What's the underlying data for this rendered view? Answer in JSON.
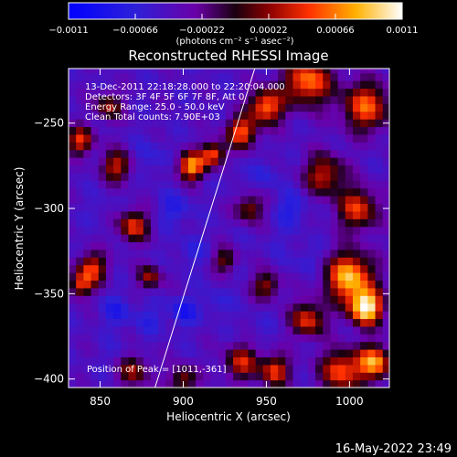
{
  "chart_data": {
    "type": "heatmap",
    "title": "Reconstructed RHESSI Image",
    "xlabel": "Heliocentric X (arcsec)",
    "ylabel": "Heliocentric Y (arcsec)",
    "xlim": [
      831,
      1024
    ],
    "ylim": [
      -405,
      -218
    ],
    "x_ticks": [
      850,
      900,
      950,
      1000
    ],
    "x_tick_labels": [
      "850",
      "900",
      "950",
      "1000"
    ],
    "y_ticks": [
      -400,
      -350,
      -300,
      -250
    ],
    "y_tick_labels": [
      "−400",
      "−350",
      "−300",
      "−250"
    ],
    "colorbar": {
      "min": -0.0011,
      "max": 0.0011,
      "ticks": [
        -0.0011,
        -0.00066,
        -0.00022,
        0.00022,
        0.00066,
        0.0011
      ],
      "tick_labels": [
        "−0.0011",
        "−0.00066",
        "−0.00022",
        "0.00022",
        "0.00066",
        "0.0011"
      ],
      "unit_label": "(photons cm⁻² s⁻¹ asec⁻²)"
    },
    "annotations": [
      "13-Dec-2011 22:18:28.000 to 22:20:04.000",
      "Detectors: 3F 4F 5F 6F 7F 8F, Att 0",
      "Energy Range: 25.0 - 50.0 keV",
      "Clean     Total counts: 7.90E+03"
    ],
    "peak_label": "Position of Peak = [1011,-361]",
    "limb_line": [
      [
        883,
        -405
      ],
      [
        943,
        -218
      ]
    ],
    "blobs": [
      {
        "x": 1010,
        "y": -358,
        "value": 0.0011,
        "size": 10
      },
      {
        "x": 1000,
        "y": -340,
        "value": 0.0009,
        "size": 14
      },
      {
        "x": 1015,
        "y": -390,
        "value": 0.0008,
        "size": 10
      },
      {
        "x": 995,
        "y": -395,
        "value": 0.0006,
        "size": 12
      },
      {
        "x": 975,
        "y": -365,
        "value": 0.0005,
        "size": 10
      },
      {
        "x": 1005,
        "y": -300,
        "value": 0.0005,
        "size": 12
      },
      {
        "x": 985,
        "y": -280,
        "value": 0.0004,
        "size": 12
      },
      {
        "x": 1010,
        "y": -240,
        "value": 0.0006,
        "size": 14
      },
      {
        "x": 975,
        "y": -225,
        "value": 0.0007,
        "size": 14
      },
      {
        "x": 950,
        "y": -240,
        "value": 0.0007,
        "size": 10
      },
      {
        "x": 935,
        "y": -255,
        "value": 0.0006,
        "size": 9
      },
      {
        "x": 905,
        "y": -275,
        "value": 0.0008,
        "size": 8
      },
      {
        "x": 918,
        "y": -268,
        "value": 0.0006,
        "size": 7
      },
      {
        "x": 860,
        "y": -275,
        "value": 0.0004,
        "size": 9
      },
      {
        "x": 838,
        "y": -260,
        "value": 0.0005,
        "size": 8
      },
      {
        "x": 855,
        "y": -240,
        "value": 0.0003,
        "size": 8
      },
      {
        "x": 870,
        "y": -310,
        "value": 0.0005,
        "size": 9
      },
      {
        "x": 845,
        "y": -335,
        "value": 0.0005,
        "size": 9
      },
      {
        "x": 838,
        "y": -345,
        "value": 0.0004,
        "size": 7
      },
      {
        "x": 880,
        "y": -340,
        "value": 0.0003,
        "size": 7
      },
      {
        "x": 940,
        "y": -300,
        "value": 0.0003,
        "size": 8
      },
      {
        "x": 950,
        "y": -345,
        "value": 0.0003,
        "size": 8
      },
      {
        "x": 925,
        "y": -330,
        "value": 0.0002,
        "size": 7
      },
      {
        "x": 935,
        "y": -390,
        "value": 0.0004,
        "size": 10
      },
      {
        "x": 955,
        "y": -395,
        "value": 0.0005,
        "size": 9
      },
      {
        "x": 870,
        "y": -395,
        "value": 0.0003,
        "size": 9
      },
      {
        "x": 900,
        "y": -400,
        "value": 0.0003,
        "size": 8
      },
      {
        "x": 880,
        "y": -270,
        "value": -0.0006,
        "size": 10
      },
      {
        "x": 895,
        "y": -300,
        "value": -0.0007,
        "size": 9
      },
      {
        "x": 905,
        "y": -325,
        "value": -0.0006,
        "size": 9
      },
      {
        "x": 860,
        "y": -360,
        "value": -0.0007,
        "size": 9
      },
      {
        "x": 880,
        "y": -365,
        "value": -0.0006,
        "size": 9
      },
      {
        "x": 900,
        "y": -360,
        "value": -0.0008,
        "size": 8
      },
      {
        "x": 930,
        "y": -280,
        "value": -0.0005,
        "size": 8
      },
      {
        "x": 950,
        "y": -280,
        "value": -0.0006,
        "size": 8
      },
      {
        "x": 965,
        "y": -300,
        "value": -0.0007,
        "size": 10
      },
      {
        "x": 975,
        "y": -330,
        "value": -0.0006,
        "size": 9
      },
      {
        "x": 955,
        "y": -320,
        "value": -0.0005,
        "size": 7
      },
      {
        "x": 920,
        "y": -355,
        "value": -0.0006,
        "size": 8
      },
      {
        "x": 945,
        "y": -370,
        "value": -0.0005,
        "size": 8
      },
      {
        "x": 860,
        "y": -385,
        "value": -0.0005,
        "size": 8
      },
      {
        "x": 990,
        "y": -310,
        "value": -0.0004,
        "size": 7
      },
      {
        "x": 850,
        "y": -300,
        "value": -0.0005,
        "size": 8
      },
      {
        "x": 915,
        "y": -240,
        "value": -0.0004,
        "size": 8
      }
    ]
  },
  "footer": {
    "timestamp": "16-May-2022 23:49"
  }
}
